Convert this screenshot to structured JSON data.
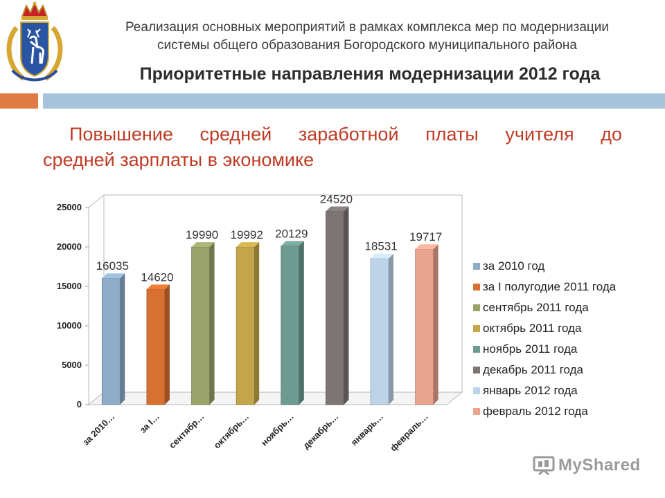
{
  "header": {
    "subtitle_line1": "Реализация основных мероприятий в рамках комплекса мер по модернизации",
    "subtitle_line2": "системы общего образования Богородского муниципального района",
    "title": "Приоритетные направления модернизации 2012 года"
  },
  "focus": {
    "line1": "Повышение средней заработной платы учителя до",
    "line2": "средней зарплаты в экономике"
  },
  "chart_data": {
    "type": "bar",
    "categories": [
      "за 2010…",
      "за I…",
      "сентябр…",
      "октябрь…",
      "ноябрь…",
      "декабрь…",
      "январь…",
      "февраль…"
    ],
    "values": [
      16035,
      14620,
      19990,
      19992,
      20129,
      24520,
      18531,
      19717
    ],
    "value_labels": [
      "16035",
      "14620",
      "19990",
      "19992",
      "20129",
      "24520",
      "18531",
      "19717"
    ],
    "legend": [
      "за 2010 год",
      "за I полугодие 2011 года",
      "сентябрь 2011 года",
      "октябрь 2011 года",
      "ноябрь 2011 года",
      "декабрь 2011 года",
      "январь 2012 года",
      "февраль 2012 года"
    ],
    "colors": [
      "#8fadc9",
      "#d77031",
      "#9aa36a",
      "#c4a64a",
      "#6e9b91",
      "#7d7474",
      "#bdd4e8",
      "#e8a48f"
    ],
    "yticks": [
      0,
      5000,
      10000,
      15000,
      20000,
      25000
    ],
    "ylim": [
      0,
      25000
    ],
    "legend_position": "right",
    "grid": false,
    "style": "3d"
  },
  "watermark": {
    "text": "MyShared"
  }
}
